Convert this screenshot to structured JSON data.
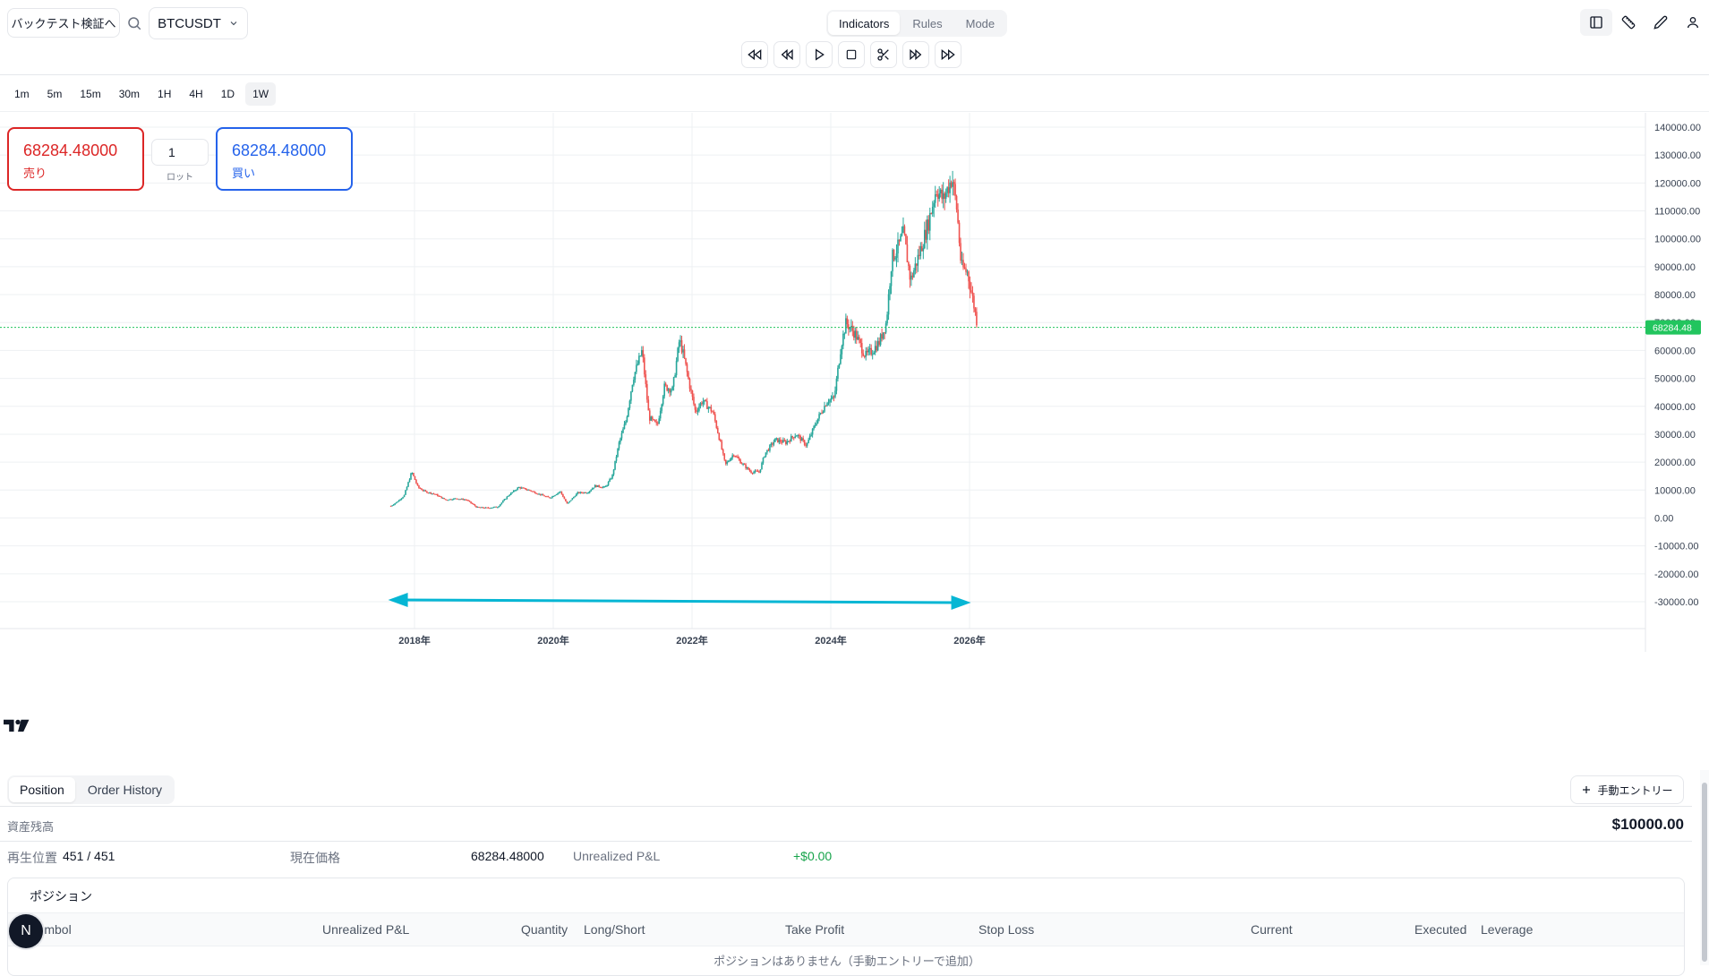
{
  "header": {
    "backtest_button": "バックテスト検証へ",
    "symbol": "BTCUSDT",
    "segments": [
      {
        "label": "Indicators",
        "active": true
      },
      {
        "label": "Rules",
        "active": false
      },
      {
        "label": "Mode",
        "active": false
      }
    ],
    "playback_icons": [
      "skip-to-start-icon",
      "step-back-icon",
      "play-icon",
      "stop-icon",
      "cut-icon",
      "step-forward-icon",
      "skip-to-end-icon"
    ],
    "right_icons": [
      "panel-toggle-icon",
      "ruler-icon",
      "pencil-icon",
      "user-icon"
    ]
  },
  "timeframes": [
    "1m",
    "5m",
    "15m",
    "30m",
    "1H",
    "4H",
    "1D",
    "1W"
  ],
  "active_timeframe": "1W",
  "order": {
    "sell_price": "68284.48000",
    "sell_label": "売り",
    "buy_price": "68284.48000",
    "buy_label": "買い",
    "lot_value": "1",
    "lot_label": "ロット"
  },
  "chart_data": {
    "type": "candlestick",
    "symbol": "BTCUSDT",
    "interval": "1W",
    "y_ticks": [
      "140000.00",
      "130000.00",
      "120000.00",
      "110000.00",
      "100000.00",
      "90000.00",
      "80000.00",
      "70000.00",
      "60000.00",
      "50000.00",
      "40000.00",
      "30000.00",
      "20000.00",
      "10000.00",
      "0.00",
      "-10000.00",
      "-20000.00",
      "-30000.00"
    ],
    "ylim": [
      -30000,
      140000
    ],
    "x_ticks": [
      "2018年",
      "2020年",
      "2022年",
      "2024年",
      "2026年"
    ],
    "x_tick_years": [
      2018,
      2020,
      2022,
      2024,
      2026
    ],
    "current_price": 68284.48,
    "current_price_label": "68284.48",
    "up_color": "#26a69a",
    "down_color": "#ef5350",
    "price_line_color": "#22c55e",
    "close_series": [
      [
        2017.66,
        4300
      ],
      [
        2017.75,
        5800
      ],
      [
        2017.85,
        8000
      ],
      [
        2017.96,
        16500
      ],
      [
        2018.05,
        11000
      ],
      [
        2018.15,
        9500
      ],
      [
        2018.3,
        8500
      ],
      [
        2018.45,
        6500
      ],
      [
        2018.6,
        7000
      ],
      [
        2018.75,
        6500
      ],
      [
        2018.9,
        3800
      ],
      [
        2019.05,
        3600
      ],
      [
        2019.2,
        4000
      ],
      [
        2019.35,
        8000
      ],
      [
        2019.5,
        11000
      ],
      [
        2019.65,
        10000
      ],
      [
        2019.8,
        8500
      ],
      [
        2019.95,
        7200
      ],
      [
        2020.1,
        9500
      ],
      [
        2020.2,
        5000
      ],
      [
        2020.35,
        9000
      ],
      [
        2020.5,
        9200
      ],
      [
        2020.6,
        11500
      ],
      [
        2020.75,
        11000
      ],
      [
        2020.85,
        15000
      ],
      [
        2020.95,
        27000
      ],
      [
        2021.05,
        35000
      ],
      [
        2021.15,
        50000
      ],
      [
        2021.28,
        60000
      ],
      [
        2021.38,
        36000
      ],
      [
        2021.5,
        33000
      ],
      [
        2021.6,
        47000
      ],
      [
        2021.72,
        46000
      ],
      [
        2021.82,
        64000
      ],
      [
        2021.88,
        58000
      ],
      [
        2021.97,
        47000
      ],
      [
        2022.05,
        38000
      ],
      [
        2022.15,
        42000
      ],
      [
        2022.3,
        38000
      ],
      [
        2022.38,
        30000
      ],
      [
        2022.48,
        19000
      ],
      [
        2022.6,
        23000
      ],
      [
        2022.72,
        19500
      ],
      [
        2022.85,
        16500
      ],
      [
        2022.97,
        16500
      ],
      [
        2023.05,
        23000
      ],
      [
        2023.2,
        28000
      ],
      [
        2023.35,
        27000
      ],
      [
        2023.5,
        30000
      ],
      [
        2023.65,
        26000
      ],
      [
        2023.8,
        35000
      ],
      [
        2023.95,
        42000
      ],
      [
        2024.05,
        43000
      ],
      [
        2024.15,
        62000
      ],
      [
        2024.22,
        70000
      ],
      [
        2024.35,
        66000
      ],
      [
        2024.5,
        58000
      ],
      [
        2024.6,
        60000
      ],
      [
        2024.7,
        63000
      ],
      [
        2024.8,
        70000
      ],
      [
        2024.88,
        93000
      ],
      [
        2024.97,
        97000
      ],
      [
        2025.05,
        102000
      ],
      [
        2025.15,
        85000
      ],
      [
        2025.28,
        95000
      ],
      [
        2025.4,
        105000
      ],
      [
        2025.52,
        118000
      ],
      [
        2025.62,
        114000
      ],
      [
        2025.75,
        122000
      ],
      [
        2025.82,
        110000
      ],
      [
        2025.88,
        90000
      ],
      [
        2025.97,
        88000
      ],
      [
        2026.05,
        78000
      ],
      [
        2026.12,
        68284
      ]
    ],
    "annotation": "range-arrow"
  },
  "bottom_panel": {
    "tabs": [
      {
        "label": "Position",
        "active": true
      },
      {
        "label": "Order History",
        "active": false
      }
    ],
    "manual_entry": "手動エントリー",
    "balance_label": "資産残高",
    "balance_value": "$10000.00",
    "playback_label": "再生位置",
    "playback_value": "451 / 451",
    "current_price_label": "現在価格",
    "current_price_value": "68284.48000",
    "unrealized_label": "Unrealized P&L",
    "unrealized_value": "+$0.00",
    "positions_title": "ポジション",
    "columns": [
      "Symbol",
      "Unrealized P&L",
      "Quantity",
      "Long/Short",
      "Take Profit",
      "Stop Loss",
      "Current",
      "Executed",
      "Leverage"
    ],
    "empty_message": "ポジションはありません（手動エントリーで追加）"
  },
  "avatar_letter": "N"
}
